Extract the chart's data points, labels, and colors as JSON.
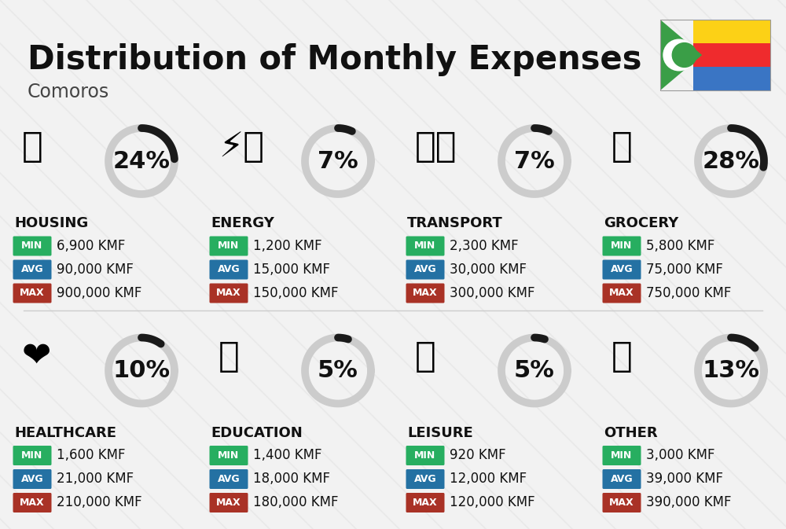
{
  "title": "Distribution of Monthly Expenses",
  "subtitle": "Comoros",
  "bg_color": "#f2f2f2",
  "categories": [
    {
      "name": "HOUSING",
      "pct": 24,
      "min": "6,900 KMF",
      "avg": "90,000 KMF",
      "max": "900,000 KMF",
      "row": 0,
      "col": 0
    },
    {
      "name": "ENERGY",
      "pct": 7,
      "min": "1,200 KMF",
      "avg": "15,000 KMF",
      "max": "150,000 KMF",
      "row": 0,
      "col": 1
    },
    {
      "name": "TRANSPORT",
      "pct": 7,
      "min": "2,300 KMF",
      "avg": "30,000 KMF",
      "max": "300,000 KMF",
      "row": 0,
      "col": 2
    },
    {
      "name": "GROCERY",
      "pct": 28,
      "min": "5,800 KMF",
      "avg": "75,000 KMF",
      "max": "750,000 KMF",
      "row": 0,
      "col": 3
    },
    {
      "name": "HEALTHCARE",
      "pct": 10,
      "min": "1,600 KMF",
      "avg": "21,000 KMF",
      "max": "210,000 KMF",
      "row": 1,
      "col": 0
    },
    {
      "name": "EDUCATION",
      "pct": 5,
      "min": "1,400 KMF",
      "avg": "18,000 KMF",
      "max": "180,000 KMF",
      "row": 1,
      "col": 1
    },
    {
      "name": "LEISURE",
      "pct": 5,
      "min": "920 KMF",
      "avg": "12,000 KMF",
      "max": "120,000 KMF",
      "row": 1,
      "col": 2
    },
    {
      "name": "OTHER",
      "pct": 13,
      "min": "3,000 KMF",
      "avg": "39,000 KMF",
      "max": "390,000 KMF",
      "row": 1,
      "col": 3
    }
  ],
  "min_color": "#27ae60",
  "avg_color": "#2471a3",
  "max_color": "#a93226",
  "arc_color_filled": "#1a1a1a",
  "arc_color_empty": "#cccccc",
  "title_fontsize": 30,
  "subtitle_fontsize": 17,
  "cat_fontsize": 13,
  "pct_fontsize": 22,
  "val_fontsize": 12,
  "badge_fontsize": 9
}
